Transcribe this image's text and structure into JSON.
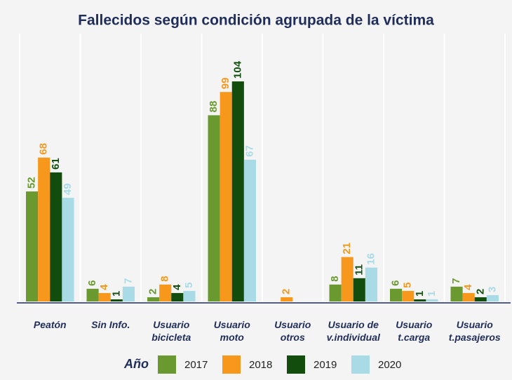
{
  "chart_data": {
    "type": "bar",
    "title": "Fallecidos según condición agrupada de la víctima",
    "categories": [
      "Peatón",
      "Sin Info.",
      "Usuario\nbicicleta",
      "Usuario\nmoto",
      "Usuario\notros",
      "Usuario de\nv.individual",
      "Usuario\nt.carga",
      "Usuario\nt.pasajeros"
    ],
    "series": [
      {
        "name": "2017",
        "color": "#6a9a2f",
        "values": [
          52,
          6,
          2,
          88,
          null,
          8,
          6,
          7
        ]
      },
      {
        "name": "2018",
        "color": "#f7981d",
        "values": [
          68,
          4,
          8,
          99,
          2,
          21,
          5,
          4
        ]
      },
      {
        "name": "2019",
        "color": "#124d0e",
        "values": [
          61,
          1,
          4,
          104,
          null,
          11,
          1,
          2
        ]
      },
      {
        "name": "2020",
        "color": "#a8dbe6",
        "values": [
          49,
          7,
          5,
          67,
          null,
          16,
          1,
          3
        ]
      }
    ],
    "legend_title": "Año",
    "ylim": [
      0,
      110
    ]
  }
}
